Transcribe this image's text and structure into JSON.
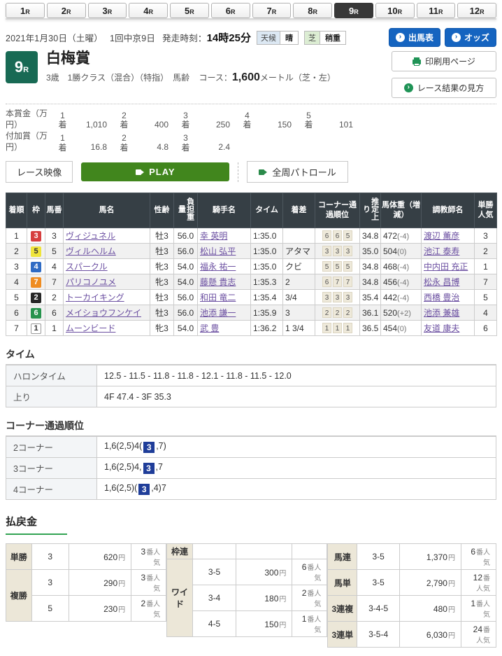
{
  "tabs": {
    "items": [
      "1R",
      "2R",
      "3R",
      "4R",
      "5R",
      "6R",
      "7R",
      "8R",
      "9R",
      "10R",
      "11R",
      "12R"
    ],
    "active_index": 8
  },
  "header": {
    "date": "2021年1月30日（土曜）",
    "meeting": "1回中京9日",
    "start_label": "発走時刻：",
    "start_time": "14時25分",
    "weather_badge": {
      "label": "天候",
      "value": "晴"
    },
    "track_badge": {
      "label": "芝",
      "value": "稍重"
    }
  },
  "actions": {
    "entries": "出馬表",
    "entries_icon": "chevron-circle-icon",
    "odds": "オッズ",
    "odds_icon": "chevron-circle-icon",
    "print": "印刷用ページ",
    "print_icon": "printer-icon",
    "guide": "レース結果の見方",
    "guide_icon": "chevron-circle-icon"
  },
  "race": {
    "number": "9",
    "number_suffix": "R",
    "name": "白梅賞",
    "conditions": "3歳　1勝クラス（混合）（特指）　馬齢",
    "course_label": "コース：",
    "distance": "1,600",
    "course_detail": "メートル（芝・左）"
  },
  "prize": {
    "rows": [
      {
        "label": "本賞金（万円）",
        "items": [
          {
            "place": "1着",
            "value": "1,010"
          },
          {
            "place": "2着",
            "value": "400"
          },
          {
            "place": "3着",
            "value": "250"
          },
          {
            "place": "4着",
            "value": "150"
          },
          {
            "place": "5着",
            "value": "101"
          }
        ]
      },
      {
        "label": "付加賞（万円）",
        "items": [
          {
            "place": "1着",
            "value": "16.8"
          },
          {
            "place": "2着",
            "value": "4.8"
          },
          {
            "place": "3着",
            "value": "2.4"
          }
        ]
      }
    ]
  },
  "video": {
    "label": "レース映像",
    "play": "PLAY",
    "play_icon": "video-camera-icon",
    "patrol": "全周パトロール",
    "patrol_icon": "video-camera-icon"
  },
  "results": {
    "headers": [
      "着順",
      "枠",
      "馬番",
      "馬名",
      "性齢",
      "負担重量",
      "騎手名",
      "タイム",
      "着差",
      "コーナー通過順位",
      "推定上り",
      "馬体重（増減）",
      "調教師名",
      "単勝人気"
    ],
    "rows": [
      {
        "pos": "1",
        "waku": "3",
        "umaban": "3",
        "name": "ヴィジュネル",
        "sexage": "牡3",
        "impost": "56.0",
        "jockey": "幸 英明",
        "time": "1:35.0",
        "margin": "",
        "corners": [
          "6",
          "6",
          "5"
        ],
        "agari": "34.8",
        "weight": "472",
        "diff": "(-4)",
        "trainer": "渡辺 薫彦",
        "fav": "3"
      },
      {
        "pos": "2",
        "waku": "5",
        "umaban": "5",
        "name": "ヴィルヘルム",
        "sexage": "牡3",
        "impost": "56.0",
        "jockey": "松山 弘平",
        "time": "1:35.0",
        "margin": "アタマ",
        "corners": [
          "3",
          "3",
          "3"
        ],
        "agari": "35.0",
        "weight": "504",
        "diff": "(0)",
        "trainer": "池江 泰寿",
        "fav": "2"
      },
      {
        "pos": "3",
        "waku": "4",
        "umaban": "4",
        "name": "スパークル",
        "sexage": "牝3",
        "impost": "54.0",
        "jockey": "福永 祐一",
        "time": "1:35.0",
        "margin": "クビ",
        "corners": [
          "5",
          "5",
          "5"
        ],
        "agari": "34.8",
        "weight": "468",
        "diff": "(-4)",
        "trainer": "中内田 充正",
        "fav": "1"
      },
      {
        "pos": "4",
        "waku": "7",
        "umaban": "7",
        "name": "パリコノユメ",
        "sexage": "牝3",
        "impost": "54.0",
        "jockey": "藤懸 貴志",
        "time": "1:35.3",
        "margin": "2",
        "corners": [
          "6",
          "7",
          "7"
        ],
        "agari": "34.8",
        "weight": "456",
        "diff": "(-4)",
        "trainer": "松永 昌博",
        "fav": "7"
      },
      {
        "pos": "5",
        "waku": "2",
        "umaban": "2",
        "name": "トーカイキング",
        "sexage": "牡3",
        "impost": "56.0",
        "jockey": "和田 竜二",
        "time": "1:35.4",
        "margin": "3/4",
        "corners": [
          "3",
          "3",
          "3"
        ],
        "agari": "35.4",
        "weight": "442",
        "diff": "(-4)",
        "trainer": "西橋 豊治",
        "fav": "5"
      },
      {
        "pos": "6",
        "waku": "6",
        "umaban": "6",
        "name": "メイショウフンケイ",
        "sexage": "牡3",
        "impost": "56.0",
        "jockey": "池添 謙一",
        "time": "1:35.9",
        "margin": "3",
        "corners": [
          "2",
          "2",
          "2"
        ],
        "agari": "36.1",
        "weight": "520",
        "diff": "(+2)",
        "trainer": "池添 兼雄",
        "fav": "4"
      },
      {
        "pos": "7",
        "waku": "1",
        "umaban": "1",
        "name": "ムーンビード",
        "sexage": "牝3",
        "impost": "54.0",
        "jockey": "武 豊",
        "time": "1:36.2",
        "margin": "1 3/4",
        "corners": [
          "1",
          "1",
          "1"
        ],
        "agari": "36.5",
        "weight": "454",
        "diff": "(0)",
        "trainer": "友道 康夫",
        "fav": "6"
      }
    ]
  },
  "time_section": {
    "title": "タイム",
    "rows": [
      {
        "label": "ハロンタイム",
        "value": "12.5 - 11.5 - 11.8 - 11.8 - 12.1 - 11.8 - 11.5 - 12.0"
      },
      {
        "label": "上り",
        "value": "4F 47.4 - 3F 35.3"
      }
    ]
  },
  "corner_section": {
    "title": "コーナー通過順位",
    "rows": [
      {
        "label": "2コーナー",
        "pre": "1,6(2,5)4(",
        "mark": "3",
        "post": ",7)"
      },
      {
        "label": "3コーナー",
        "pre": "1,6(2,5)4,",
        "mark": "3",
        "post": ",7"
      },
      {
        "label": "4コーナー",
        "pre": "1,6(2,5)(",
        "mark": "3",
        "post": ",4)7"
      }
    ]
  },
  "payout": {
    "title": "払戻金",
    "yen_suffix": "円",
    "fav_suffix": "番人気",
    "left": [
      {
        "label": "単勝",
        "rows": [
          {
            "num": "3",
            "amount": "620",
            "fav": "3"
          }
        ]
      },
      {
        "label": "複勝",
        "rows": [
          {
            "num": "3",
            "amount": "290",
            "fav": "3"
          },
          {
            "num": "5",
            "amount": "230",
            "fav": "2"
          }
        ]
      }
    ],
    "middle": [
      {
        "label": "枠連",
        "rows": [
          {
            "num": "",
            "amount": "",
            "fav": ""
          }
        ]
      },
      {
        "label": "ワイド",
        "rows": [
          {
            "num": "3-5",
            "amount": "300",
            "fav": "6"
          },
          {
            "num": "3-4",
            "amount": "180",
            "fav": "2"
          },
          {
            "num": "4-5",
            "amount": "150",
            "fav": "1"
          }
        ]
      }
    ],
    "right": [
      {
        "label": "馬連",
        "rows": [
          {
            "num": "3-5",
            "amount": "1,370",
            "fav": "6"
          }
        ]
      },
      {
        "label": "馬単",
        "rows": [
          {
            "num": "3-5",
            "amount": "2,790",
            "fav": "12"
          }
        ]
      },
      {
        "label": "3連複",
        "rows": [
          {
            "num": "3-4-5",
            "amount": "480",
            "fav": "1"
          }
        ]
      },
      {
        "label": "3連単",
        "rows": [
          {
            "num": "3-5-4",
            "amount": "6,030",
            "fav": "24"
          }
        ]
      }
    ]
  },
  "colors": {
    "accent_green": "#1f9356",
    "button_blue": "#1564c0",
    "header_dark": "#363f45",
    "race_number_green": "#186a54",
    "corner_mark_blue": "#1f3d99",
    "waku": {
      "1": "#ffffff",
      "2": "#262626",
      "3": "#d63e3e",
      "4": "#2f6bc4",
      "5": "#efe43b",
      "6": "#26934d",
      "7": "#ef8c21"
    }
  }
}
